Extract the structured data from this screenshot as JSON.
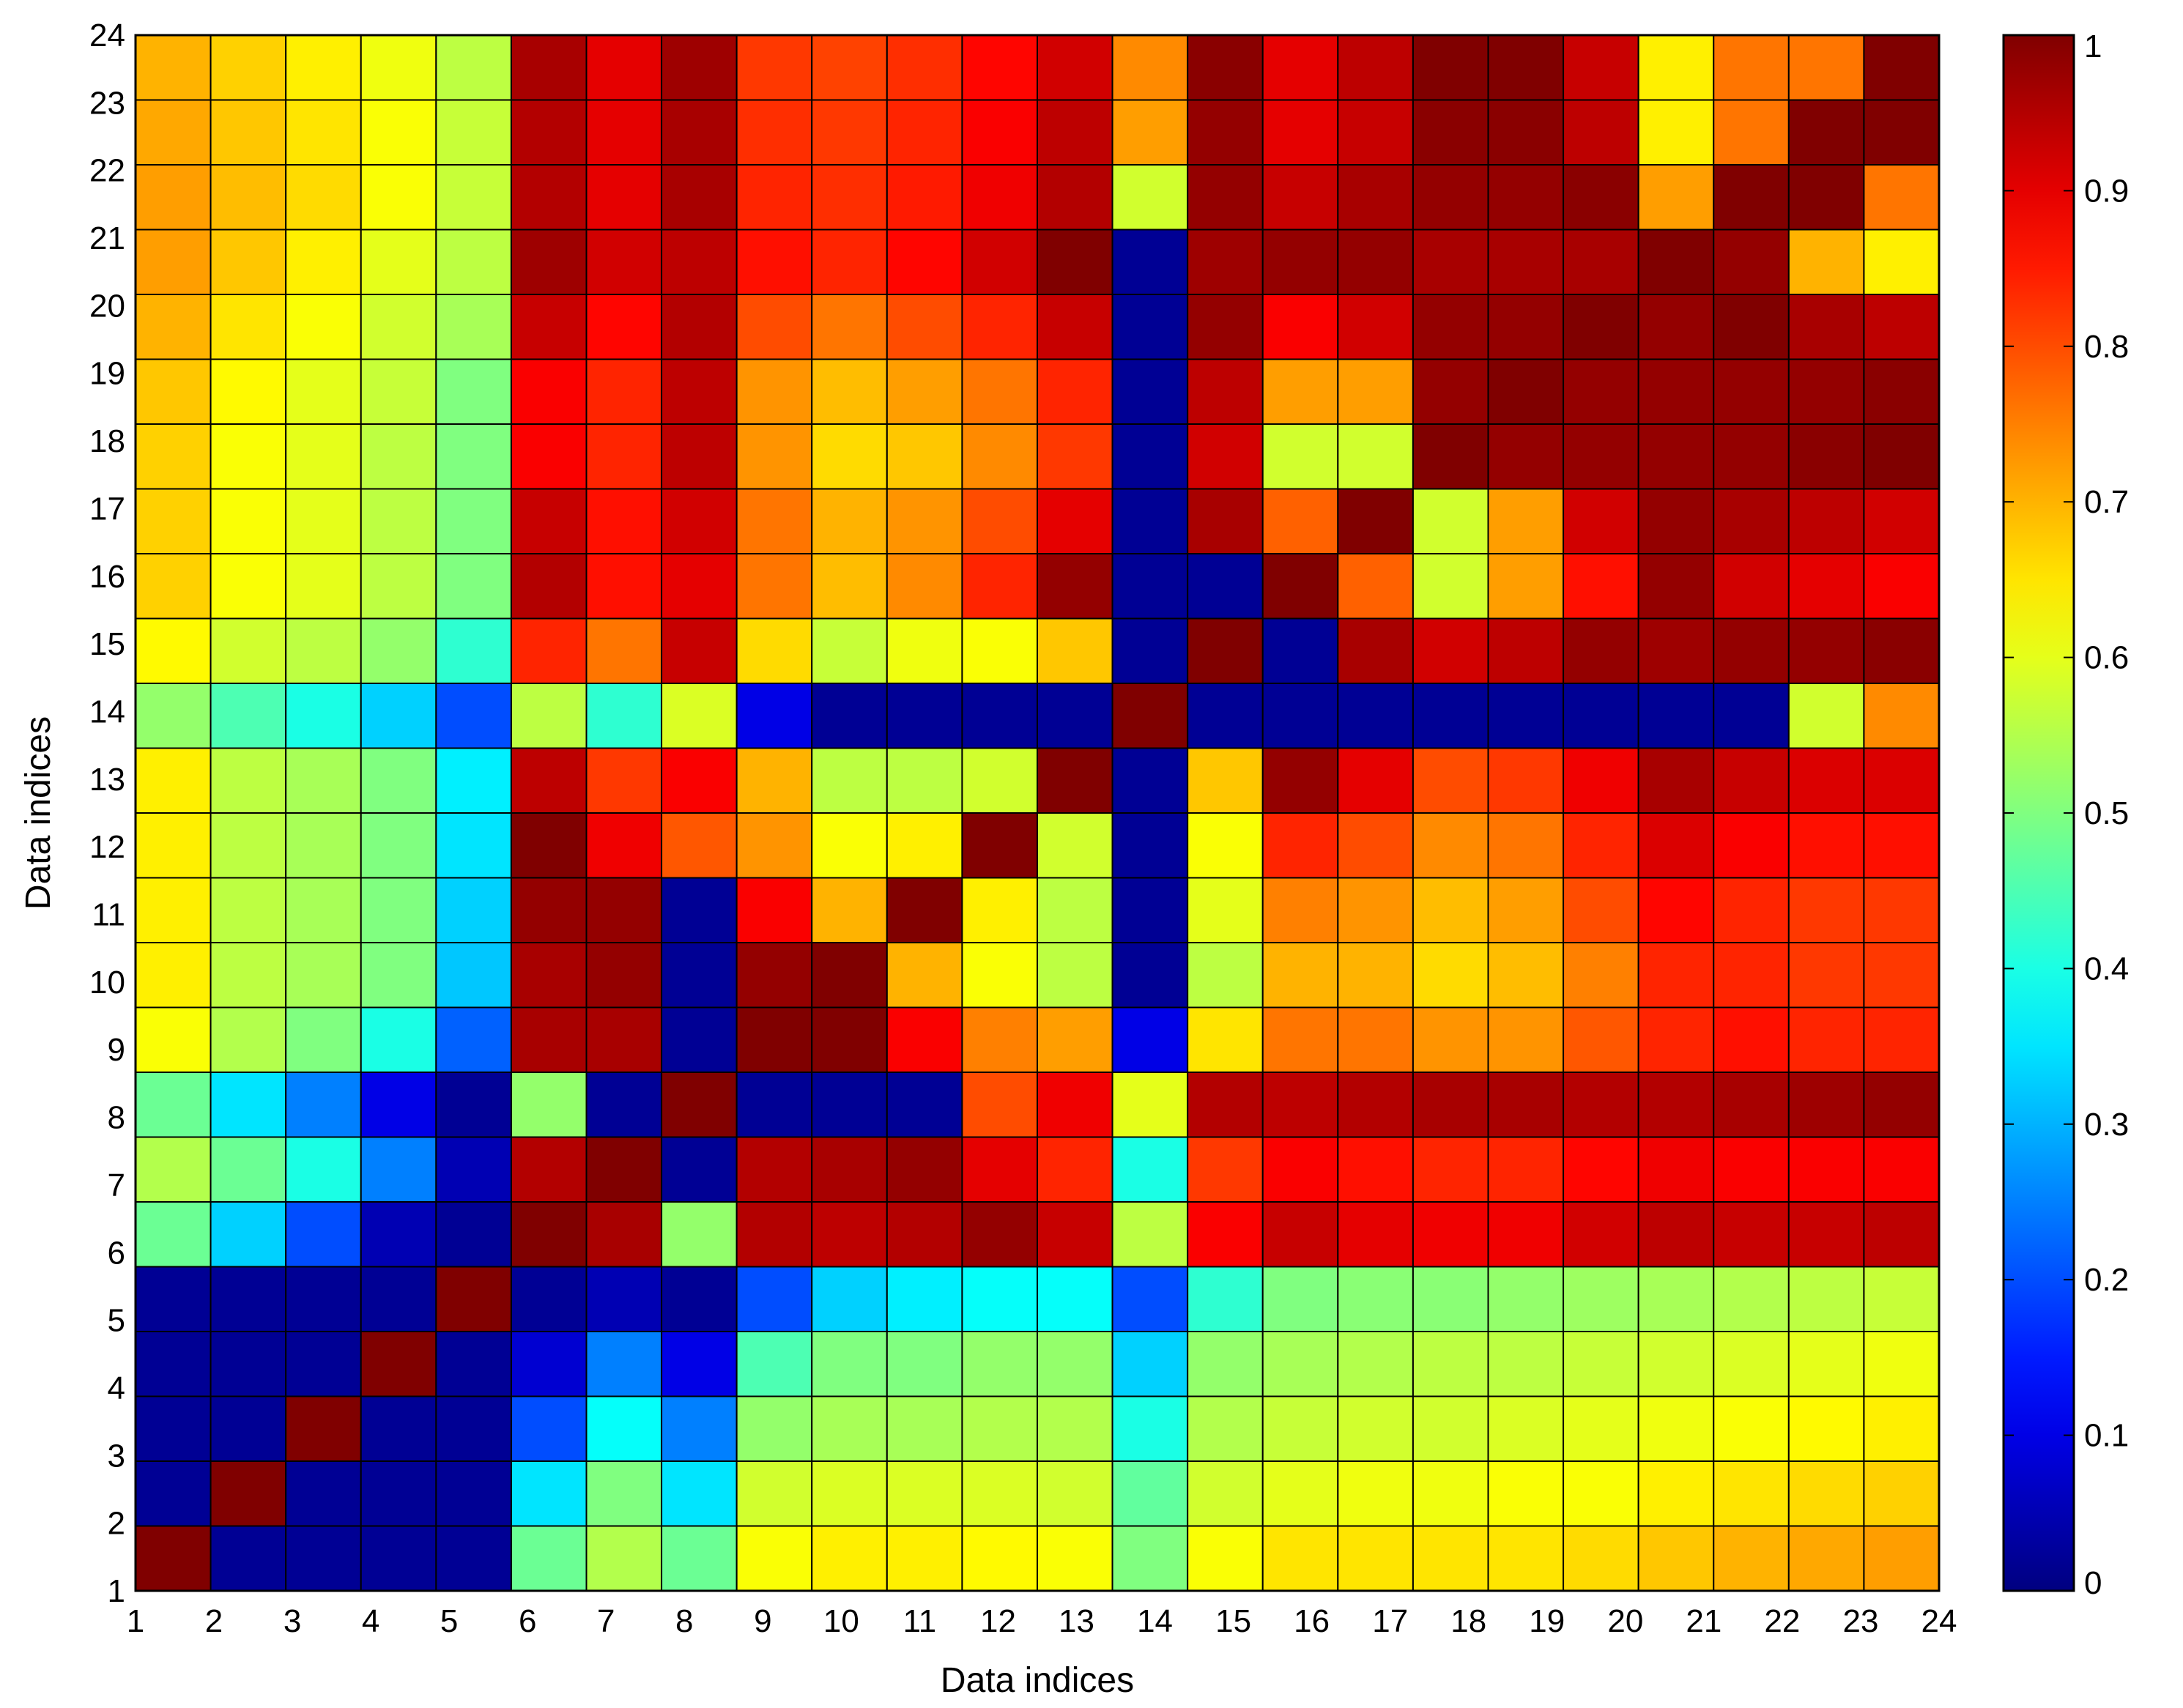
{
  "chart_data": {
    "type": "heatmap",
    "title": "",
    "xlabel": "Data indices",
    "ylabel": "Data indices",
    "x_ticks": [
      "1",
      "2",
      "3",
      "4",
      "5",
      "6",
      "7",
      "8",
      "9",
      "10",
      "11",
      "12",
      "13",
      "14",
      "15",
      "16",
      "17",
      "18",
      "19",
      "20",
      "21",
      "22",
      "23",
      "24"
    ],
    "y_ticks": [
      "1",
      "2",
      "3",
      "4",
      "5",
      "6",
      "7",
      "8",
      "9",
      "10",
      "11",
      "12",
      "13",
      "14",
      "15",
      "16",
      "17",
      "18",
      "19",
      "20",
      "21",
      "22",
      "23",
      "24"
    ],
    "colorbar": {
      "colormap": "jet",
      "range": [
        0,
        1
      ],
      "ticks": [
        "0",
        "0.1",
        "0.2",
        "0.3",
        "0.4",
        "0.5",
        "0.6",
        "0.7",
        "0.8",
        "0.9",
        "1"
      ]
    },
    "values": [
      [
        1.0,
        0.02,
        0.02,
        0.02,
        0.02,
        0.48,
        0.55,
        0.48,
        0.62,
        0.64,
        0.64,
        0.63,
        0.62,
        0.5,
        0.62,
        0.65,
        0.65,
        0.65,
        0.65,
        0.66,
        0.68,
        0.7,
        0.71,
        0.72
      ],
      [
        0.02,
        1.0,
        0.02,
        0.02,
        0.02,
        0.35,
        0.5,
        0.35,
        0.58,
        0.59,
        0.59,
        0.59,
        0.58,
        0.47,
        0.58,
        0.6,
        0.61,
        0.61,
        0.62,
        0.62,
        0.64,
        0.65,
        0.66,
        0.67
      ],
      [
        0.02,
        0.02,
        1.0,
        0.02,
        0.02,
        0.2,
        0.38,
        0.25,
        0.52,
        0.54,
        0.54,
        0.55,
        0.55,
        0.4,
        0.55,
        0.57,
        0.58,
        0.58,
        0.59,
        0.6,
        0.61,
        0.62,
        0.63,
        0.64
      ],
      [
        0.02,
        0.02,
        0.02,
        1.0,
        0.02,
        0.08,
        0.25,
        0.1,
        0.45,
        0.5,
        0.5,
        0.52,
        0.52,
        0.33,
        0.52,
        0.54,
        0.55,
        0.56,
        0.56,
        0.57,
        0.58,
        0.59,
        0.6,
        0.61
      ],
      [
        0.02,
        0.02,
        0.02,
        0.02,
        1.0,
        0.02,
        0.05,
        0.02,
        0.2,
        0.33,
        0.36,
        0.38,
        0.38,
        0.2,
        0.42,
        0.5,
        0.51,
        0.51,
        0.52,
        0.53,
        0.54,
        0.55,
        0.56,
        0.57
      ],
      [
        0.48,
        0.33,
        0.2,
        0.05,
        0.02,
        1.0,
        0.96,
        0.52,
        0.95,
        0.94,
        0.95,
        0.98,
        0.93,
        0.56,
        0.88,
        0.93,
        0.9,
        0.89,
        0.89,
        0.92,
        0.94,
        0.93,
        0.93,
        0.94
      ],
      [
        0.55,
        0.48,
        0.4,
        0.25,
        0.05,
        0.95,
        1.0,
        0.02,
        0.95,
        0.96,
        0.98,
        0.9,
        0.84,
        0.4,
        0.82,
        0.88,
        0.86,
        0.84,
        0.84,
        0.87,
        0.89,
        0.88,
        0.88,
        0.88
      ],
      [
        0.48,
        0.35,
        0.25,
        0.1,
        0.02,
        0.52,
        0.02,
        1.0,
        0.02,
        0.02,
        0.02,
        0.8,
        0.89,
        0.6,
        0.95,
        0.94,
        0.95,
        0.96,
        0.96,
        0.95,
        0.95,
        0.96,
        0.97,
        0.98
      ],
      [
        0.62,
        0.55,
        0.5,
        0.4,
        0.22,
        0.96,
        0.96,
        0.02,
        1.0,
        1.0,
        0.88,
        0.75,
        0.72,
        0.1,
        0.65,
        0.76,
        0.76,
        0.73,
        0.73,
        0.79,
        0.84,
        0.86,
        0.84,
        0.84
      ],
      [
        0.64,
        0.56,
        0.54,
        0.5,
        0.32,
        0.96,
        0.98,
        0.02,
        0.98,
        1.0,
        0.7,
        0.62,
        0.56,
        0.02,
        0.56,
        0.7,
        0.7,
        0.66,
        0.69,
        0.75,
        0.84,
        0.84,
        0.82,
        0.82
      ],
      [
        0.64,
        0.56,
        0.54,
        0.5,
        0.33,
        0.98,
        0.98,
        0.02,
        0.88,
        0.7,
        1.0,
        0.64,
        0.56,
        0.02,
        0.6,
        0.75,
        0.73,
        0.69,
        0.72,
        0.8,
        0.87,
        0.84,
        0.82,
        0.82
      ],
      [
        0.64,
        0.56,
        0.54,
        0.5,
        0.35,
        1.0,
        0.89,
        0.79,
        0.73,
        0.62,
        0.64,
        1.0,
        0.58,
        0.02,
        0.62,
        0.84,
        0.8,
        0.74,
        0.76,
        0.84,
        0.91,
        0.88,
        0.86,
        0.86
      ],
      [
        0.64,
        0.56,
        0.54,
        0.5,
        0.36,
        0.94,
        0.82,
        0.88,
        0.7,
        0.56,
        0.56,
        0.58,
        1.0,
        0.02,
        0.68,
        0.98,
        0.9,
        0.8,
        0.82,
        0.89,
        0.96,
        0.93,
        0.91,
        0.91
      ],
      [
        0.52,
        0.45,
        0.4,
        0.33,
        0.2,
        0.56,
        0.42,
        0.59,
        0.1,
        0.02,
        0.02,
        0.02,
        0.02,
        1.0,
        0.02,
        0.02,
        0.02,
        0.02,
        0.02,
        0.02,
        0.02,
        0.02,
        0.58,
        0.74
      ],
      [
        0.63,
        0.58,
        0.56,
        0.52,
        0.42,
        0.84,
        0.76,
        0.93,
        0.66,
        0.57,
        0.61,
        0.62,
        0.68,
        0.02,
        1.0,
        0.02,
        0.96,
        0.92,
        0.94,
        0.98,
        0.97,
        0.98,
        0.98,
        0.99
      ],
      [
        0.67,
        0.62,
        0.6,
        0.56,
        0.5,
        0.95,
        0.86,
        0.9,
        0.76,
        0.69,
        0.74,
        0.84,
        0.98,
        0.02,
        0.02,
        1.0,
        0.78,
        0.58,
        0.72,
        0.86,
        0.98,
        0.92,
        0.9,
        0.88
      ],
      [
        0.67,
        0.62,
        0.6,
        0.56,
        0.5,
        0.93,
        0.86,
        0.92,
        0.76,
        0.7,
        0.73,
        0.8,
        0.9,
        0.02,
        0.96,
        0.78,
        1.0,
        0.58,
        0.72,
        0.92,
        0.98,
        0.96,
        0.94,
        0.92
      ],
      [
        0.67,
        0.62,
        0.6,
        0.56,
        0.5,
        0.88,
        0.84,
        0.94,
        0.73,
        0.66,
        0.68,
        0.74,
        0.82,
        0.02,
        0.92,
        0.58,
        0.58,
        1.0,
        0.98,
        0.98,
        0.98,
        0.98,
        0.99,
        1.0
      ],
      [
        0.68,
        0.63,
        0.6,
        0.57,
        0.5,
        0.88,
        0.84,
        0.94,
        0.73,
        0.69,
        0.72,
        0.76,
        0.84,
        0.02,
        0.94,
        0.72,
        0.72,
        0.98,
        1.0,
        0.98,
        0.98,
        0.98,
        0.98,
        0.99
      ],
      [
        0.7,
        0.65,
        0.62,
        0.58,
        0.54,
        0.93,
        0.87,
        0.95,
        0.8,
        0.76,
        0.8,
        0.84,
        0.93,
        0.02,
        0.98,
        0.88,
        0.92,
        0.98,
        0.98,
        1.0,
        0.98,
        1.0,
        0.96,
        0.94
      ],
      [
        0.72,
        0.68,
        0.64,
        0.6,
        0.56,
        0.97,
        0.92,
        0.94,
        0.86,
        0.84,
        0.87,
        0.92,
        1.0,
        0.02,
        0.97,
        0.98,
        0.98,
        0.96,
        0.96,
        0.96,
        1.0,
        0.98,
        0.7,
        0.64
      ],
      [
        0.72,
        0.69,
        0.66,
        0.62,
        0.57,
        0.95,
        0.9,
        0.96,
        0.84,
        0.83,
        0.85,
        0.89,
        0.95,
        0.58,
        0.98,
        0.93,
        0.96,
        0.98,
        0.98,
        0.99,
        0.72,
        1.0,
        1.0,
        0.76
      ],
      [
        0.71,
        0.68,
        0.65,
        0.62,
        0.57,
        0.95,
        0.9,
        0.96,
        0.83,
        0.82,
        0.84,
        0.88,
        0.94,
        0.72,
        0.98,
        0.9,
        0.93,
        0.99,
        0.99,
        0.94,
        0.64,
        0.76,
        1.0,
        1.0
      ],
      [
        0.7,
        0.67,
        0.64,
        0.61,
        0.56,
        0.96,
        0.9,
        0.97,
        0.82,
        0.81,
        0.83,
        0.87,
        0.92,
        0.74,
        0.99,
        0.9,
        0.94,
        1.0,
        1.0,
        0.93,
        0.64,
        0.76,
        0.76,
        1.0
      ]
    ]
  }
}
